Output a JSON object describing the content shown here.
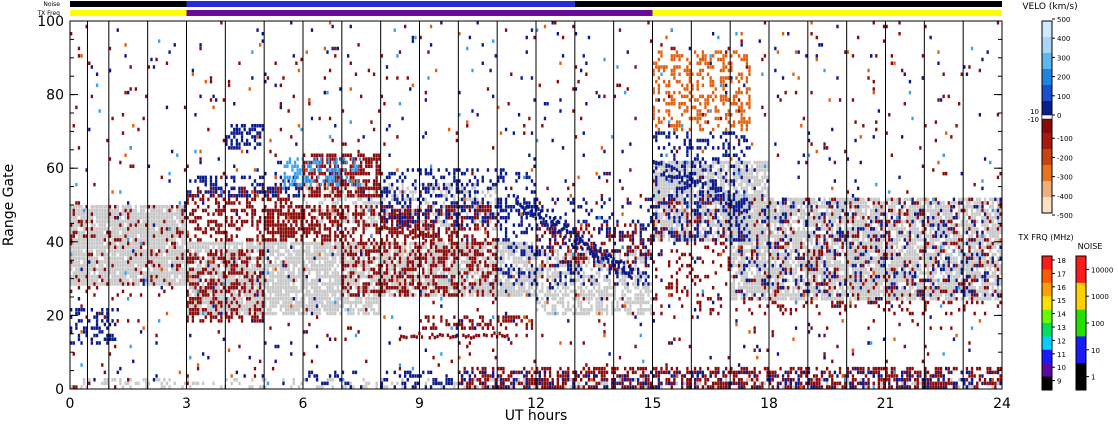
{
  "chart_data": {
    "type": "heatmap",
    "top_bars": {
      "noise_label": "Noise",
      "txfreq_label": "TX Freq",
      "noise_segments": [
        {
          "t0": 0,
          "t1": 3,
          "color": "#000000"
        },
        {
          "t0": 3,
          "t1": 13,
          "color": "#2a2ad8"
        },
        {
          "t0": 13,
          "t1": 24,
          "color": "#000000"
        }
      ],
      "txfreq_segments": [
        {
          "t0": 0,
          "t1": 3,
          "color": "#ffff00"
        },
        {
          "t0": 3,
          "t1": 15,
          "color": "#6a0a9a"
        },
        {
          "t0": 15,
          "t1": 24,
          "color": "#ffff00"
        }
      ]
    },
    "xlabel": "UT hours",
    "ylabel": "Range Gate",
    "xlim": [
      0,
      24
    ],
    "ylim": [
      0,
      100
    ],
    "xticks": [
      0,
      3,
      6,
      9,
      12,
      15,
      18,
      21,
      24
    ],
    "yticks": [
      0,
      20,
      40,
      60,
      80,
      100
    ],
    "scan_lines": [
      0.45,
      1.0,
      2.0,
      3.0,
      4.0,
      5.0,
      6.0,
      7.0,
      8.0,
      9.0,
      10.0,
      11.0,
      12.0,
      13.0,
      14.0,
      15.0,
      16.0,
      17.0,
      18.0,
      19.0,
      20.0,
      21.0,
      22.0,
      23.0
    ],
    "regions": [
      {
        "kind": "ground",
        "t0": 0,
        "t1": 3,
        "g0": 28,
        "g1": 50,
        "density": 0.9
      },
      {
        "kind": "ground",
        "t0": 3,
        "t1": 8,
        "g0": 20,
        "g1": 40,
        "density": 0.8
      },
      {
        "kind": "ground",
        "t0": 8,
        "t1": 12,
        "g0": 25,
        "g1": 40,
        "density": 0.75
      },
      {
        "kind": "ground",
        "t0": 12,
        "t1": 15,
        "g0": 20,
        "g1": 38,
        "density": 0.55
      },
      {
        "kind": "ground",
        "t0": 15,
        "t1": 18,
        "g0": 40,
        "g1": 62,
        "density": 0.75
      },
      {
        "kind": "ground",
        "t0": 17,
        "t1": 24,
        "g0": 24,
        "g1": 52,
        "density": 0.75
      },
      {
        "kind": "ground",
        "t0": 6,
        "t1": 11,
        "g0": 43,
        "g1": 56,
        "density": 0.35
      },
      {
        "kind": "ground",
        "t0": 0,
        "t1": 24,
        "g0": 0,
        "g1": 3,
        "density": 0.25
      },
      {
        "kind": "red",
        "t0": 0,
        "t1": 3,
        "g0": 25,
        "g1": 50,
        "density": 0.12
      },
      {
        "kind": "red",
        "t0": 3,
        "t1": 5,
        "g0": 18,
        "g1": 38,
        "density": 0.4
      },
      {
        "kind": "red",
        "t0": 3,
        "t1": 6,
        "g0": 40,
        "g1": 55,
        "density": 0.35
      },
      {
        "kind": "red",
        "t0": 5,
        "t1": 7,
        "g0": 40,
        "g1": 50,
        "density": 0.55
      },
      {
        "kind": "red",
        "t0": 6,
        "t1": 8,
        "g0": 52,
        "g1": 64,
        "density": 0.6
      },
      {
        "kind": "red",
        "t0": 7,
        "t1": 11,
        "g0": 25,
        "g1": 50,
        "density": 0.4
      },
      {
        "kind": "red",
        "t0": 9,
        "t1": 12,
        "g0": 16,
        "g1": 20,
        "density": 0.35
      },
      {
        "kind": "red",
        "t0": 12,
        "t1": 15,
        "g0": 33,
        "g1": 45,
        "density": 0.3
      },
      {
        "kind": "red",
        "t0": 10,
        "t1": 24,
        "g0": 0,
        "g1": 6,
        "density": 0.45
      },
      {
        "kind": "red",
        "t0": 15,
        "t1": 24,
        "g0": 20,
        "g1": 52,
        "density": 0.15
      },
      {
        "kind": "red",
        "t0": 0,
        "t1": 24,
        "g0": 0,
        "g1": 100,
        "density": 0.015
      },
      {
        "kind": "blue",
        "t0": 0,
        "t1": 1.2,
        "g0": 12,
        "g1": 22,
        "density": 0.4
      },
      {
        "kind": "blue",
        "t0": 3,
        "t1": 6,
        "g0": 52,
        "g1": 58,
        "density": 0.3
      },
      {
        "kind": "blue",
        "t0": 4,
        "t1": 5,
        "g0": 65,
        "g1": 72,
        "density": 0.5
      },
      {
        "kind": "blue",
        "t0": 8,
        "t1": 12,
        "g0": 44,
        "g1": 60,
        "density": 0.25
      },
      {
        "kind": "blue",
        "t0": 11,
        "t1": 15,
        "g0": 28,
        "g1": 52,
        "density": 0.2
      },
      {
        "kind": "blue",
        "t0": 15,
        "t1": 17.5,
        "g0": 40,
        "g1": 70,
        "density": 0.25
      },
      {
        "kind": "blue",
        "t0": 17,
        "t1": 24,
        "g0": 25,
        "g1": 52,
        "density": 0.12
      },
      {
        "kind": "blue",
        "t0": 6,
        "t1": 24,
        "g0": 0,
        "g1": 5,
        "density": 0.2
      },
      {
        "kind": "blue",
        "t0": 0,
        "t1": 24,
        "g0": 0,
        "g1": 100,
        "density": 0.012
      },
      {
        "kind": "lightblue",
        "t0": 5.5,
        "t1": 7.5,
        "g0": 55,
        "g1": 63,
        "density": 0.45
      },
      {
        "kind": "lightblue",
        "t0": 0,
        "t1": 24,
        "g0": 0,
        "g1": 100,
        "density": 0.003
      },
      {
        "kind": "orange",
        "t0": 15,
        "t1": 17.5,
        "g0": 70,
        "g1": 92,
        "density": 0.35
      },
      {
        "kind": "orange",
        "t0": 0,
        "t1": 24,
        "g0": 0,
        "g1": 100,
        "density": 0.004
      }
    ],
    "streaks": [
      {
        "kind": "blue",
        "t0": 11.5,
        "g0": 50,
        "t1": 14.5,
        "g1": 30,
        "width": 3
      },
      {
        "kind": "blue",
        "t0": 15,
        "g0": 60,
        "t1": 17.5,
        "g1": 48,
        "width": 3
      },
      {
        "kind": "red",
        "t0": 8,
        "g0": 46,
        "t1": 9.5,
        "g1": 40,
        "width": 4
      },
      {
        "kind": "red",
        "t0": 8.5,
        "g0": 14,
        "t1": 11.5,
        "g1": 14,
        "width": 1
      }
    ],
    "velocity_scale": {
      "title": "VELO (km/s)",
      "ticks": [
        500,
        400,
        300,
        200,
        100,
        0,
        -100,
        -200,
        -300,
        -400,
        -500
      ],
      "side_labels": [
        "10",
        "-10"
      ],
      "colors": [
        "#cfe7ff",
        "#a9d6f5",
        "#5bb8f0",
        "#1e84e0",
        "#1a4fd0",
        "#0a1e8c",
        "#8a0a0a",
        "#a81a10",
        "#c84410",
        "#e8741e",
        "#f0b07a",
        "#fde0c0"
      ]
    },
    "txfreq_scale": {
      "title": "TX FRQ (MHz)",
      "ticks": [
        18,
        17,
        16,
        15,
        14,
        13,
        12,
        11,
        10,
        9
      ],
      "colors": [
        "#ff1a1a",
        "#ff5a00",
        "#ffa000",
        "#ffe000",
        "#66ff00",
        "#00e060",
        "#00d0ff",
        "#1a1aff",
        "#5a0aa0",
        "#000000"
      ]
    },
    "noise_scale": {
      "title": "NOISE",
      "ticks": [
        "10000",
        "1000",
        "100",
        "10",
        "1"
      ],
      "colors": [
        "#ff1a1a",
        "#ffd000",
        "#22e000",
        "#1a1aff",
        "#000000"
      ]
    },
    "colors": {
      "ground": "#c8c8c8",
      "red": "#8a0a0a",
      "blue": "#0a1a8c",
      "lightblue": "#3aa0f0",
      "orange": "#e06010"
    }
  }
}
